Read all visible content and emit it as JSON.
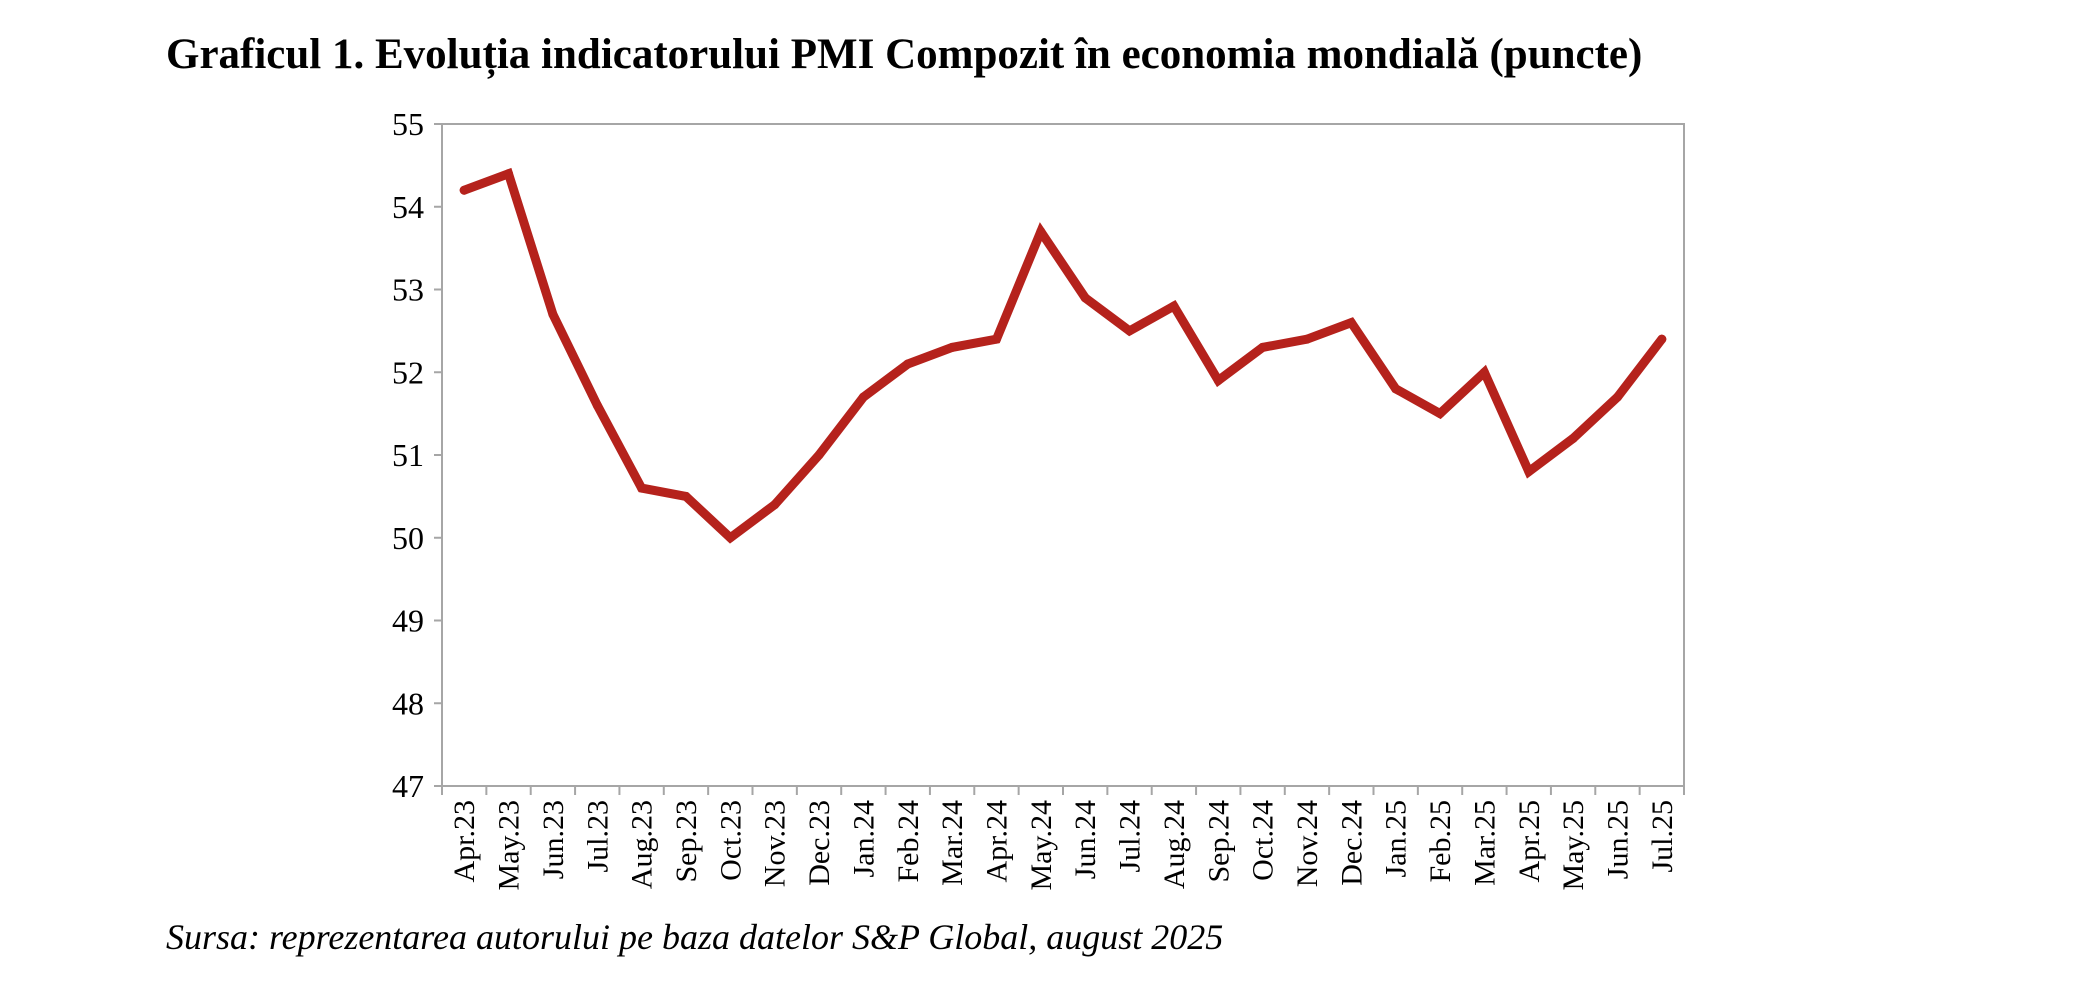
{
  "chart_data": {
    "type": "line",
    "title": "Graficul 1. Evoluția indicatorului PMI Compozit în economia mondială (puncte)",
    "source": "Sursa: reprezentarea autorului pe baza datelor S&P Global, august 2025",
    "xlabel": "",
    "ylabel": "",
    "categories": [
      "Apr.23",
      "May.23",
      "Jun.23",
      "Jul.23",
      "Aug.23",
      "Sep.23",
      "Oct.23",
      "Nov.23",
      "Dec.23",
      "Jan.24",
      "Feb.24",
      "Mar.24",
      "Apr.24",
      "May.24",
      "Jun.24",
      "Jul.24",
      "Aug.24",
      "Sep.24",
      "Oct.24",
      "Nov.24",
      "Dec.24",
      "Jan.25",
      "Feb.25",
      "Mar.25",
      "Apr.25",
      "May.25",
      "Jun.25",
      "Jul.25"
    ],
    "series": [
      {
        "values": [
          54.2,
          54.4,
          52.7,
          51.6,
          50.6,
          50.5,
          50.0,
          50.4,
          51.0,
          51.7,
          52.1,
          52.3,
          52.4,
          53.7,
          52.9,
          52.5,
          52.8,
          51.9,
          52.3,
          52.4,
          52.6,
          51.8,
          51.5,
          52.0,
          50.8,
          51.2,
          51.7,
          52.4
        ],
        "color": "#b5221c"
      }
    ],
    "ylim": [
      47,
      55
    ],
    "yticks": [
      47,
      48,
      49,
      50,
      51,
      52,
      53,
      54,
      55
    ],
    "grid": false,
    "legend": "none",
    "axis_color": "#a6a6a6"
  }
}
